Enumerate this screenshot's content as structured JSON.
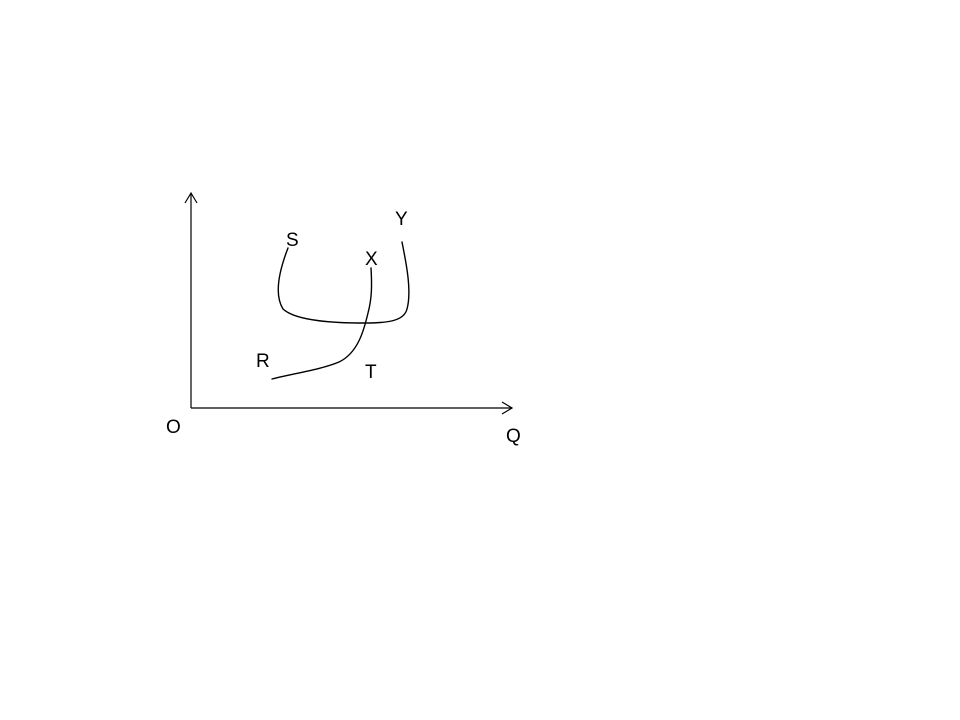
{
  "labels": {
    "origin": "O",
    "x_axis": "Q",
    "s": "S",
    "x": "X",
    "y": "Y",
    "r": "R",
    "t": "T"
  }
}
